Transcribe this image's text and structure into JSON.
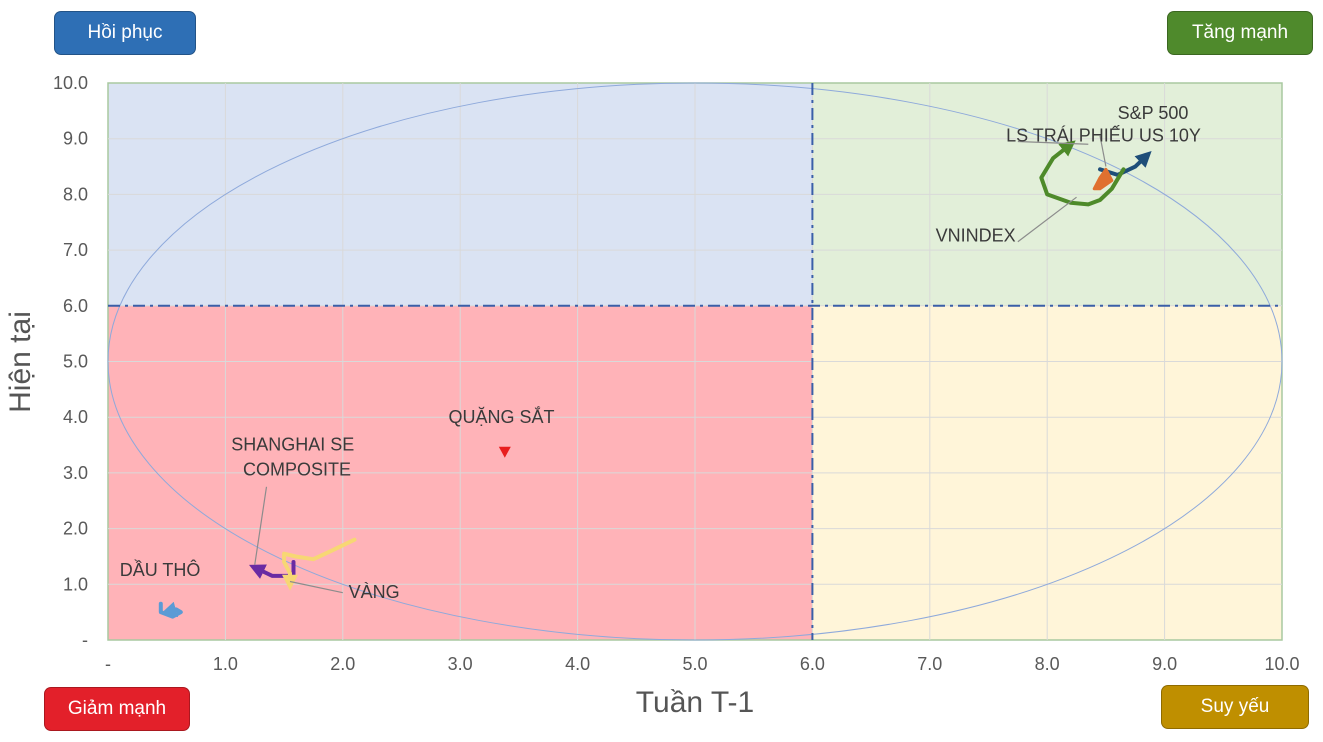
{
  "quadrant_labels": {
    "top_left": "Hồi phục",
    "top_right": "Tăng mạnh",
    "bottom_left": "Giảm mạnh",
    "bottom_right": "Suy yếu"
  },
  "colors": {
    "top_left_badge": "#2E6FB5",
    "top_right_badge": "#4F8A2C",
    "bottom_left_badge": "#E3202A",
    "bottom_right_badge": "#BF8F00",
    "q_top_left": "#DAE3F3",
    "q_top_right": "#E2EFD9",
    "q_bottom_left": "#FFB3B8",
    "q_bottom_right": "#FFF5D9"
  },
  "chart_data": {
    "type": "scatter",
    "xlabel": "Tuần T-1",
    "ylabel": "Hiện tại",
    "xlim": [
      0,
      10
    ],
    "ylim": [
      0,
      10
    ],
    "x_ticks": [
      "-",
      "1.0",
      "2.0",
      "3.0",
      "4.0",
      "5.0",
      "6.0",
      "7.0",
      "8.0",
      "9.0",
      "10.0"
    ],
    "y_ticks": [
      "-",
      "1.0",
      "2.0",
      "3.0",
      "4.0",
      "5.0",
      "6.0",
      "7.0",
      "8.0",
      "9.0",
      "10.0"
    ],
    "grid": true,
    "threshold_x": 6,
    "threshold_y": 6,
    "ellipse": {
      "cx": 5,
      "cy": 5,
      "rx": 5,
      "ry": 5
    },
    "series": [
      {
        "name": "S&P 500",
        "color": "#1F4E79",
        "x": [
          8.45,
          8.6,
          8.75,
          8.85
        ],
        "y": [
          8.45,
          8.35,
          8.5,
          8.7
        ]
      },
      {
        "name": "LS TRÁI PHIẾU US 10Y",
        "color": "#E07030",
        "x": [
          8.4,
          8.45,
          8.5,
          8.55,
          8.45
        ],
        "y": [
          8.1,
          8.3,
          8.45,
          8.25,
          8.1
        ]
      },
      {
        "name": "VNINDEX",
        "color": "#4E8A2A",
        "x": [
          8.65,
          8.55,
          8.45,
          8.35,
          8.2,
          8.0,
          7.95,
          8.05,
          8.2
        ],
        "y": [
          8.45,
          8.1,
          7.9,
          7.82,
          7.85,
          8.0,
          8.3,
          8.65,
          8.9
        ]
      },
      {
        "name": "QUẶNG SẮT",
        "color": "#E81E1E",
        "x": [
          3.38
        ],
        "y": [
          3.38
        ]
      },
      {
        "name": "SHANGHAI SE COMPOSITE",
        "color": "#6A2BA3",
        "x": [
          1.58,
          1.58,
          1.5,
          1.4,
          1.25
        ],
        "y": [
          1.4,
          1.15,
          1.15,
          1.15,
          1.3
        ]
      },
      {
        "name": "VÀNG",
        "color": "#F7D774",
        "x": [
          2.1,
          1.9,
          1.75,
          1.6,
          1.5,
          1.5,
          1.55,
          1.55
        ],
        "y": [
          1.8,
          1.6,
          1.45,
          1.5,
          1.55,
          1.4,
          1.2,
          1.0
        ]
      },
      {
        "name": "DẦU THÔ",
        "color": "#5B9BD5",
        "x": [
          0.45,
          0.45,
          0.55,
          0.62,
          0.58,
          0.5
        ],
        "y": [
          0.65,
          0.5,
          0.42,
          0.5,
          0.55,
          0.5
        ]
      }
    ],
    "annotations": [
      {
        "text": "S&P 500",
        "x": 8.6,
        "y": 9.35
      },
      {
        "text": "LS TRÁI PHIẾU US 10Y",
        "x": 7.65,
        "y": 8.95
      },
      {
        "text": "VNINDEX",
        "x": 7.05,
        "y": 7.15
      },
      {
        "text": "QUẶNG SẮT",
        "x": 2.9,
        "y": 3.9
      },
      {
        "text": "SHANGHAI SE",
        "x": 1.05,
        "y": 3.4
      },
      {
        "text": "COMPOSITE",
        "x": 1.15,
        "y": 2.95
      },
      {
        "text": "VÀNG",
        "x": 2.05,
        "y": 0.75
      },
      {
        "text": "DẦU THÔ",
        "x": 0.1,
        "y": 1.15
      }
    ],
    "leader_lines": [
      {
        "from": [
          8.45,
          9.05
        ],
        "to": [
          8.5,
          8.5
        ]
      },
      {
        "from": [
          7.75,
          8.95
        ],
        "to": [
          8.35,
          8.9
        ]
      },
      {
        "from": [
          7.75,
          7.15
        ],
        "to": [
          8.25,
          7.95
        ]
      },
      {
        "from": [
          1.35,
          2.75
        ],
        "to": [
          1.25,
          1.35
        ]
      },
      {
        "from": [
          2.0,
          0.85
        ],
        "to": [
          1.55,
          1.05
        ]
      }
    ]
  }
}
